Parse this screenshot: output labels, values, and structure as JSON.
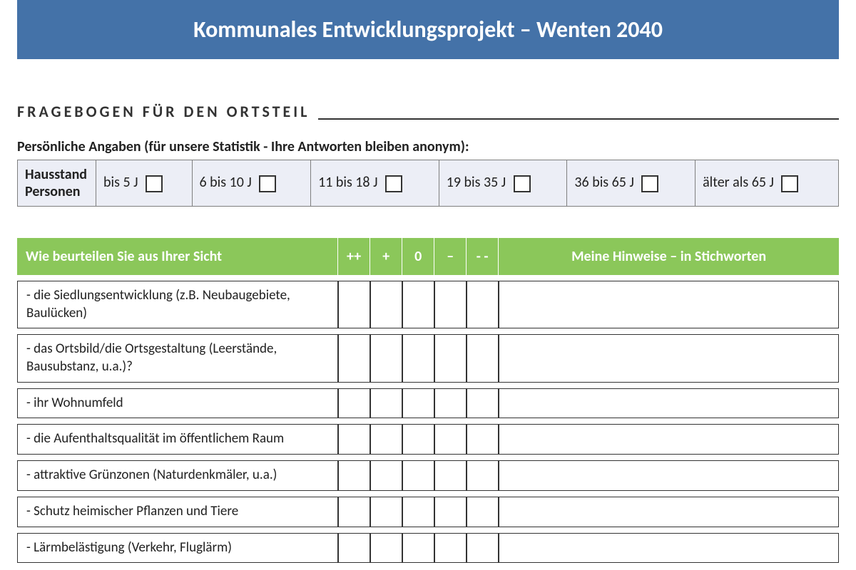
{
  "header": {
    "title": "Kommunales Entwicklungsprojekt – Wenten 2040",
    "banner_bg": "#4472a8",
    "banner_fg": "#ffffff"
  },
  "section": {
    "title": "FRAGEBOGEN FÜR DEN ORTSTEIL"
  },
  "personal": {
    "subtitle": "Persönliche Angaben (für unsere Statistik - Ihre Antworten bleiben anonym):",
    "row_label_1": "Hausstand",
    "row_label_2": "Personen",
    "age_options": [
      "bis 5 J",
      "6 bis 10 J",
      "11 bis 18 J",
      "19 bis 35 J",
      "36 bis 65 J",
      "älter als 65 J"
    ],
    "bg": "#eceef6"
  },
  "eval": {
    "header_bg": "#8bc75a",
    "header_fg": "#ffffff",
    "question_header": "Wie beurteilen Sie aus Ihrer Sicht",
    "ratings": [
      "++",
      "+",
      "0",
      "–",
      "- -"
    ],
    "notes_header": "Meine Hinweise – in Stichworten",
    "questions": [
      "-  die Siedlungsentwicklung (z.B. Neubaugebiete, Baulücken)",
      "- das Ortsbild/die Ortsgestaltung (Leerstände, Bausubstanz, u.a.)?",
      "- ihr Wohnumfeld",
      "- die Aufenthaltsqualität im öffentlichem Raum",
      "- attraktive Grünzonen (Naturdenkmäler, u.a.)",
      "-  Schutz heimischer Pflanzen und Tiere",
      "- Lärmbelästigung (Verkehr, Fluglärm)"
    ]
  }
}
